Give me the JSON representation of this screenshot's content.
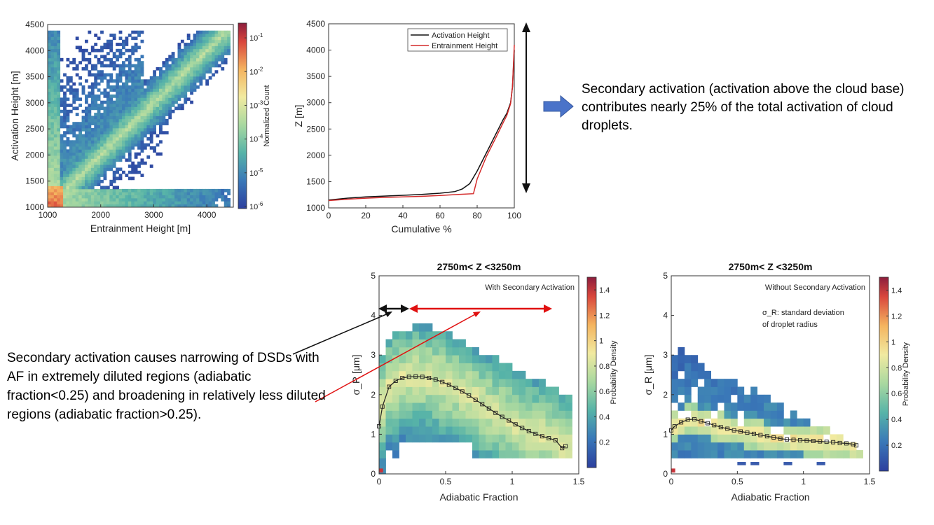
{
  "text": {
    "sec_note": "Secondary activation (activation above the cloud base) contributes nearly 25% of the total activation of cloud droplets.",
    "narrow_note": "Secondary activation causes narrowing of DSDs with AF in extremely diluted regions (adiabatic fraction<0.25) and broadening in relatively less diluted regions (adiabatic fraction>0.25)."
  },
  "colors": {
    "black_line": "#111111",
    "red_line": "#d42a2a",
    "arrow_blue": "#4a73c9",
    "arrow_red": "#e01010"
  },
  "chart_data": [
    {
      "id": "heatmap_act_ent",
      "type": "heatmap",
      "xlabel": "Entrainment Height [m]",
      "ylabel": "Activation Height [m]",
      "xlim": [
        1000,
        4500
      ],
      "ylim": [
        1000,
        4500
      ],
      "xticks": [
        "1000",
        "2000",
        "3000",
        "4000"
      ],
      "yticks": [
        "1000",
        "1500",
        "2000",
        "2500",
        "3000",
        "3500",
        "4000",
        "4500"
      ],
      "colorbar": {
        "label": "Normalized Count",
        "scale": "log",
        "range": [
          1e-06,
          0.3
        ],
        "ticks": [
          [
            "10",
            "-6"
          ],
          [
            "10",
            "-5"
          ],
          [
            "10",
            "-4"
          ],
          [
            "10",
            "-3"
          ],
          [
            "10",
            "-2"
          ],
          [
            "10",
            "-1"
          ]
        ]
      }
    },
    {
      "id": "cumulative",
      "type": "line",
      "xlabel": "Cumulative %",
      "ylabel": "Z [m]",
      "xlim": [
        0,
        100
      ],
      "ylim": [
        1000,
        4500
      ],
      "xticks": [
        "0",
        "20",
        "40",
        "60",
        "80",
        "100"
      ],
      "yticks": [
        "1000",
        "1500",
        "2000",
        "2500",
        "3000",
        "3500",
        "4000",
        "4500"
      ],
      "legend": "top-right",
      "series": [
        {
          "name": "Activation Height",
          "color": "#111111",
          "points": [
            [
              0,
              1150
            ],
            [
              10,
              1185
            ],
            [
              20,
              1210
            ],
            [
              30,
              1225
            ],
            [
              40,
              1240
            ],
            [
              50,
              1255
            ],
            [
              60,
              1280
            ],
            [
              68,
              1310
            ],
            [
              72,
              1360
            ],
            [
              76,
              1460
            ],
            [
              80,
              1700
            ],
            [
              85,
              2050
            ],
            [
              90,
              2400
            ],
            [
              94,
              2680
            ],
            [
              96,
              2800
            ],
            [
              98,
              3000
            ],
            [
              99,
              3300
            ],
            [
              100,
              4000
            ]
          ]
        },
        {
          "name": "Entrainment Height",
          "color": "#d42a2a",
          "points": [
            [
              0,
              1140
            ],
            [
              10,
              1165
            ],
            [
              20,
              1185
            ],
            [
              30,
              1200
            ],
            [
              40,
              1210
            ],
            [
              50,
              1220
            ],
            [
              60,
              1235
            ],
            [
              70,
              1255
            ],
            [
              78,
              1270
            ],
            [
              80,
              1550
            ],
            [
              85,
              1980
            ],
            [
              90,
              2330
            ],
            [
              94,
              2620
            ],
            [
              96,
              2760
            ],
            [
              98,
              2980
            ],
            [
              99,
              3300
            ],
            [
              100,
              4100
            ]
          ]
        }
      ]
    },
    {
      "id": "sigma_with",
      "type": "heatmap",
      "title": "2750m< Z <3250m",
      "annotation": "With Secondary Activation",
      "xlabel": "Adiabatic Fraction",
      "ylabel": "σ_R [μm]",
      "xlim": [
        0,
        1.5
      ],
      "ylim": [
        0,
        5
      ],
      "xticks": [
        "0",
        "0.5",
        "1",
        "1.5"
      ],
      "yticks": [
        "0",
        "1",
        "2",
        "3",
        "4",
        "5"
      ],
      "colorbar": {
        "label": "Probability Density",
        "range": [
          0,
          1.5
        ],
        "ticks": [
          "0.2",
          "0.4",
          "0.6",
          "0.8",
          "1",
          "1.2",
          "1.4"
        ]
      },
      "mean_curve": {
        "x": [
          0,
          0.025,
          0.075,
          0.125,
          0.175,
          0.225,
          0.275,
          0.325,
          0.375,
          0.425,
          0.475,
          0.525,
          0.575,
          0.625,
          0.675,
          0.725,
          0.775,
          0.825,
          0.875,
          0.925,
          0.975,
          1.025,
          1.075,
          1.125,
          1.175,
          1.225,
          1.275,
          1.325,
          1.375,
          1.4
        ],
        "y": [
          1.2,
          1.7,
          2.2,
          2.35,
          2.42,
          2.45,
          2.46,
          2.45,
          2.42,
          2.38,
          2.32,
          2.25,
          2.17,
          2.08,
          1.98,
          1.87,
          1.76,
          1.65,
          1.54,
          1.44,
          1.35,
          1.25,
          1.16,
          1.08,
          1.01,
          0.95,
          0.9,
          0.85,
          0.65,
          0.7
        ]
      }
    },
    {
      "id": "sigma_without",
      "type": "heatmap",
      "title": "2750m< Z <3250m",
      "annotation": "Without Secondary Activation",
      "note": "σ_R: standard deviation of droplet radius",
      "xlabel": "Adiabatic Fraction",
      "ylabel": "σ_R [μm]",
      "xlim": [
        0,
        1.5
      ],
      "ylim": [
        0,
        5
      ],
      "xticks": [
        "0",
        "0.5",
        "1",
        "1.5"
      ],
      "yticks": [
        "0",
        "1",
        "2",
        "3",
        "4",
        "5"
      ],
      "colorbar": {
        "label": "Probability Density",
        "range": [
          0,
          1.5
        ],
        "ticks": [
          "0.2",
          "0.4",
          "0.6",
          "0.8",
          "1",
          "1.2",
          "1.4"
        ]
      },
      "mean_curve": {
        "x": [
          0,
          0.025,
          0.075,
          0.125,
          0.175,
          0.225,
          0.275,
          0.325,
          0.375,
          0.425,
          0.475,
          0.525,
          0.575,
          0.625,
          0.675,
          0.725,
          0.775,
          0.825,
          0.875,
          0.925,
          0.975,
          1.025,
          1.075,
          1.125,
          1.175,
          1.225,
          1.275,
          1.325,
          1.375,
          1.4
        ],
        "y": [
          1.1,
          1.2,
          1.3,
          1.37,
          1.38,
          1.33,
          1.28,
          1.23,
          1.18,
          1.14,
          1.1,
          1.07,
          1.04,
          1.01,
          0.98,
          0.95,
          0.92,
          0.89,
          0.87,
          0.86,
          0.85,
          0.84,
          0.83,
          0.82,
          0.81,
          0.8,
          0.78,
          0.77,
          0.75,
          0.72
        ]
      }
    }
  ]
}
